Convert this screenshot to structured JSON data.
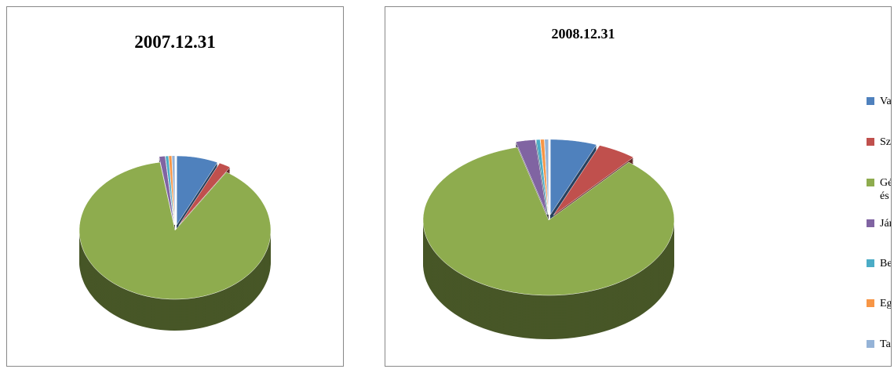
{
  "chart_data": [
    {
      "type": "pie",
      "title": "2007.12.31",
      "values": [
        7,
        2,
        88.5,
        1,
        0.5,
        0.5,
        0.5
      ],
      "colors": [
        "#4f81bd",
        "#c0504d",
        "#8eac4e",
        "#8064a2",
        "#4bacc6",
        "#f79646",
        "#95b3d7"
      ]
    },
    {
      "type": "pie",
      "title": "2008.12.31",
      "categories": [
        "Vagyoni értékű jogok",
        "Szellemi termékek",
        "Gépek, berendezések és felszerelések",
        "Járművek",
        "Beruházások, felújítások",
        "Egyéb tartós részesedés",
        "Tartósan adott kölcsönök"
      ],
      "values": [
        6,
        5,
        85,
        2.5,
        0.5,
        0.5,
        0.5
      ],
      "colors": [
        "#4f81bd",
        "#c0504d",
        "#8eac4e",
        "#8064a2",
        "#4bacc6",
        "#f79646",
        "#95b3d7"
      ],
      "legend": "right"
    }
  ]
}
